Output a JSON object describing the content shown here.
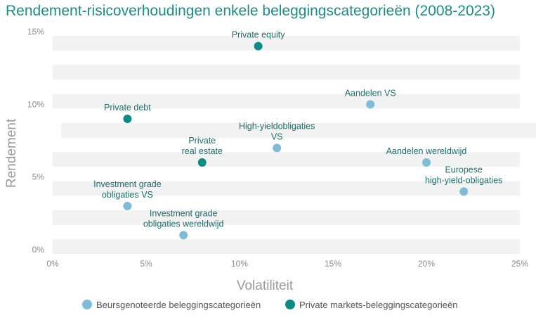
{
  "chart_data": {
    "type": "scatter",
    "title": "Rendement-risicoverhoudingen enkele beleggingscategorieën (2008-2023)",
    "xlabel": "Volatiliteit",
    "ylabel": "Rendement",
    "xlim": [
      0,
      25
    ],
    "ylim": [
      0,
      15
    ],
    "x_ticks": [
      "0%",
      "5%",
      "10%",
      "15%",
      "20%",
      "25%"
    ],
    "y_ticks": [
      "0%",
      "5%",
      "10%",
      "15%"
    ],
    "legend_position": "bottom",
    "series": [
      {
        "name": "Beursgenoteerde beleggingscategorieën",
        "color": "#7fbcd9",
        "points": [
          {
            "label": [
              "Aandelen VS"
            ],
            "x": 17,
            "y": 10
          },
          {
            "label": [
              "High-yieldobligaties",
              "VS"
            ],
            "x": 12,
            "y": 7
          },
          {
            "label": [
              "Aandelen wereldwijd"
            ],
            "x": 20,
            "y": 6
          },
          {
            "label": [
              "Europese",
              "high-yield-obligaties"
            ],
            "x": 22,
            "y": 4
          },
          {
            "label": [
              "Investment grade",
              "obligaties VS"
            ],
            "x": 4,
            "y": 3
          },
          {
            "label": [
              "Investment grade",
              "obligaties wereldwijd"
            ],
            "x": 7,
            "y": 1
          }
        ]
      },
      {
        "name": "Private markets-beleggingscategorieën",
        "color": "#0e8a84",
        "points": [
          {
            "label": [
              "Private equity"
            ],
            "x": 11,
            "y": 14
          },
          {
            "label": [
              "Private debt"
            ],
            "x": 4,
            "y": 9
          },
          {
            "label": [
              "Private",
              "real estate"
            ],
            "x": 8,
            "y": 6
          }
        ]
      }
    ]
  }
}
